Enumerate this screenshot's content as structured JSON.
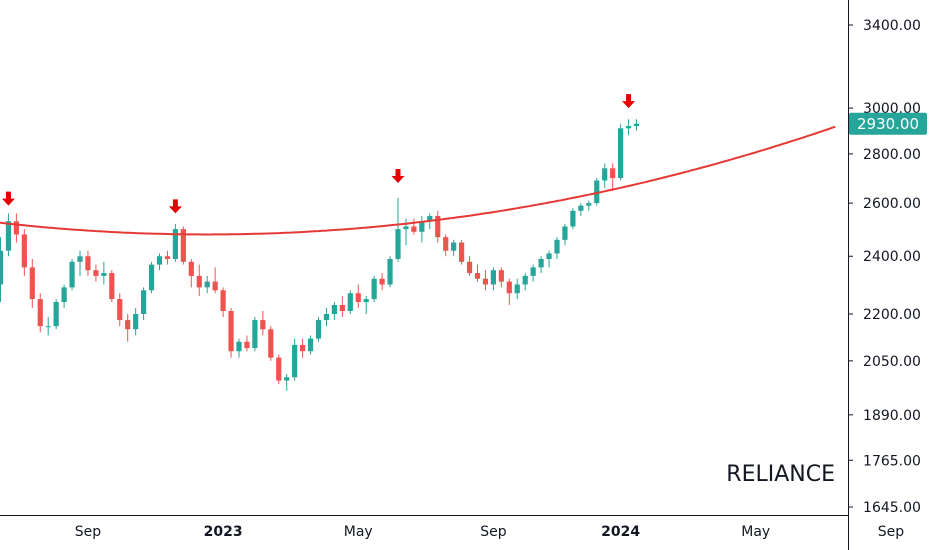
{
  "chart_data": {
    "type": "candlestick",
    "symbol": "RELIANCE",
    "last_price": "2930.00",
    "last_price_value": 2930,
    "y_scale": "log",
    "ylim": [
      1620,
      3700
    ],
    "y_ticks": [
      {
        "value": 3400,
        "label": "3400.00"
      },
      {
        "value": 3000,
        "label": "3000.00"
      },
      {
        "value": 2800,
        "label": "2800.00"
      },
      {
        "value": 2600,
        "label": "2600.00"
      },
      {
        "value": 2400,
        "label": "2400.00"
      },
      {
        "value": 2200,
        "label": "2200.00"
      },
      {
        "value": 2050,
        "label": "2050.00"
      },
      {
        "value": 1890,
        "label": "1890.00"
      },
      {
        "value": 1765,
        "label": "1765.00"
      },
      {
        "value": 1645,
        "label": "1645.00"
      }
    ],
    "x_ticks": [
      {
        "week": 11,
        "label": "Sep",
        "bold": false
      },
      {
        "week": 28,
        "label": "2023",
        "bold": true
      },
      {
        "week": 45,
        "label": "May",
        "bold": false
      },
      {
        "week": 62,
        "label": "Sep",
        "bold": false
      },
      {
        "week": 78,
        "label": "2024",
        "bold": true
      },
      {
        "week": 95,
        "label": "May",
        "bold": false
      },
      {
        "week": 112,
        "label": "Sep",
        "bold": false
      }
    ],
    "candles": [
      [
        2300,
        2470,
        2240,
        2420
      ],
      [
        2420,
        2560,
        2400,
        2530
      ],
      [
        2530,
        2560,
        2450,
        2480
      ],
      [
        2480,
        2500,
        2330,
        2360
      ],
      [
        2360,
        2390,
        2220,
        2250
      ],
      [
        2250,
        2270,
        2140,
        2160
      ],
      [
        2160,
        2190,
        2130,
        2160
      ],
      [
        2160,
        2250,
        2150,
        2240
      ],
      [
        2240,
        2300,
        2220,
        2290
      ],
      [
        2290,
        2390,
        2280,
        2380
      ],
      [
        2380,
        2420,
        2330,
        2400
      ],
      [
        2400,
        2420,
        2330,
        2350
      ],
      [
        2350,
        2370,
        2310,
        2330
      ],
      [
        2330,
        2380,
        2300,
        2340
      ],
      [
        2340,
        2350,
        2240,
        2250
      ],
      [
        2250,
        2270,
        2160,
        2180
      ],
      [
        2180,
        2200,
        2110,
        2150
      ],
      [
        2150,
        2220,
        2130,
        2200
      ],
      [
        2200,
        2290,
        2180,
        2280
      ],
      [
        2280,
        2380,
        2270,
        2370
      ],
      [
        2370,
        2410,
        2350,
        2400
      ],
      [
        2400,
        2420,
        2370,
        2390
      ],
      [
        2390,
        2520,
        2380,
        2500
      ],
      [
        2500,
        2510,
        2370,
        2380
      ],
      [
        2380,
        2390,
        2290,
        2330
      ],
      [
        2330,
        2370,
        2260,
        2290
      ],
      [
        2290,
        2330,
        2270,
        2310
      ],
      [
        2310,
        2360,
        2270,
        2280
      ],
      [
        2280,
        2290,
        2190,
        2210
      ],
      [
        2210,
        2220,
        2060,
        2080
      ],
      [
        2080,
        2120,
        2060,
        2110
      ],
      [
        2110,
        2130,
        2080,
        2090
      ],
      [
        2090,
        2190,
        2080,
        2180
      ],
      [
        2180,
        2210,
        2130,
        2150
      ],
      [
        2150,
        2160,
        2050,
        2060
      ],
      [
        2060,
        2070,
        1980,
        1990
      ],
      [
        1990,
        2010,
        1960,
        2000
      ],
      [
        2000,
        2120,
        1990,
        2100
      ],
      [
        2100,
        2120,
        2060,
        2080
      ],
      [
        2080,
        2130,
        2070,
        2120
      ],
      [
        2120,
        2190,
        2110,
        2180
      ],
      [
        2180,
        2220,
        2160,
        2200
      ],
      [
        2200,
        2240,
        2180,
        2230
      ],
      [
        2230,
        2260,
        2190,
        2210
      ],
      [
        2210,
        2280,
        2200,
        2270
      ],
      [
        2270,
        2300,
        2220,
        2240
      ],
      [
        2240,
        2260,
        2200,
        2250
      ],
      [
        2250,
        2330,
        2240,
        2320
      ],
      [
        2320,
        2340,
        2280,
        2300
      ],
      [
        2300,
        2400,
        2290,
        2390
      ],
      [
        2390,
        2620,
        2380,
        2500
      ],
      [
        2500,
        2540,
        2440,
        2510
      ],
      [
        2510,
        2540,
        2480,
        2490
      ],
      [
        2490,
        2550,
        2450,
        2530
      ],
      [
        2530,
        2560,
        2500,
        2550
      ],
      [
        2550,
        2570,
        2450,
        2470
      ],
      [
        2470,
        2480,
        2400,
        2420
      ],
      [
        2420,
        2460,
        2400,
        2450
      ],
      [
        2450,
        2460,
        2370,
        2380
      ],
      [
        2380,
        2400,
        2330,
        2340
      ],
      [
        2340,
        2370,
        2310,
        2320
      ],
      [
        2320,
        2350,
        2280,
        2300
      ],
      [
        2300,
        2360,
        2280,
        2350
      ],
      [
        2350,
        2360,
        2290,
        2310
      ],
      [
        2310,
        2320,
        2230,
        2270
      ],
      [
        2270,
        2320,
        2250,
        2300
      ],
      [
        2300,
        2340,
        2280,
        2330
      ],
      [
        2330,
        2370,
        2310,
        2360
      ],
      [
        2360,
        2400,
        2340,
        2390
      ],
      [
        2390,
        2420,
        2360,
        2410
      ],
      [
        2410,
        2470,
        2390,
        2460
      ],
      [
        2460,
        2520,
        2440,
        2510
      ],
      [
        2510,
        2580,
        2500,
        2570
      ],
      [
        2570,
        2600,
        2550,
        2590
      ],
      [
        2590,
        2610,
        2570,
        2600
      ],
      [
        2600,
        2700,
        2590,
        2690
      ],
      [
        2690,
        2760,
        2660,
        2740
      ],
      [
        2740,
        2760,
        2650,
        2700
      ],
      [
        2700,
        2930,
        2690,
        2910
      ],
      [
        2910,
        2950,
        2880,
        2920
      ],
      [
        2920,
        2950,
        2900,
        2930
      ]
    ],
    "arrows": [
      {
        "week": 1,
        "price": 2590
      },
      {
        "week": 22,
        "price": 2560
      },
      {
        "week": 50,
        "price": 2680
      },
      {
        "week": 79,
        "price": 3000
      }
    ],
    "curve": {
      "vertex_week": 26,
      "vertex_price": 2480,
      "coef": 2.6e-05
    },
    "colors": {
      "up": "#26a69a",
      "down": "#ef5350",
      "curve": "#e53935",
      "arrow": "#e50000",
      "badge": "#26a69a"
    }
  }
}
